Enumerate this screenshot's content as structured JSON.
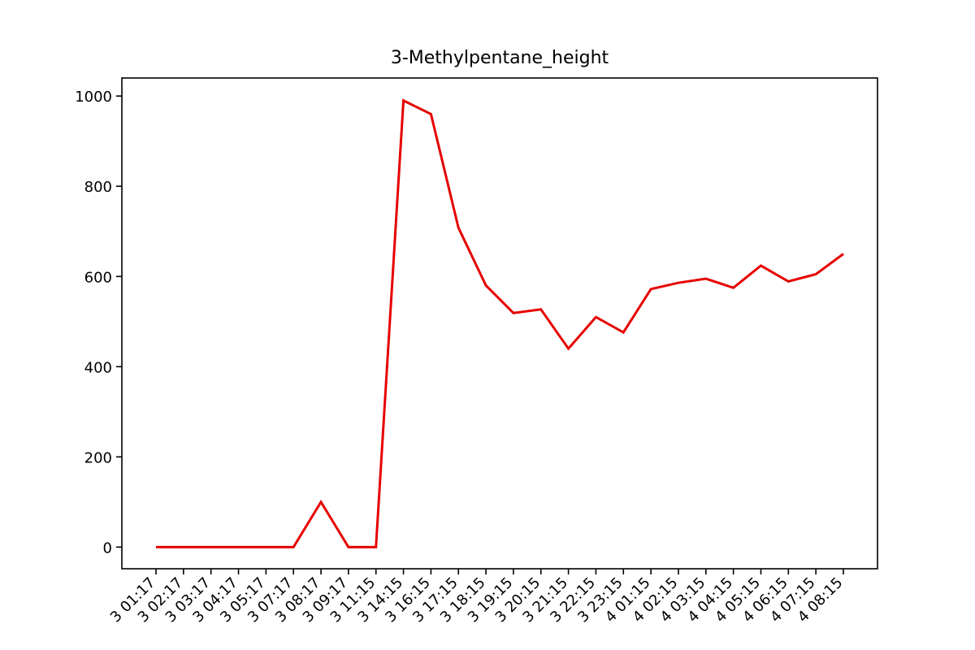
{
  "chart_data": {
    "type": "line",
    "title": "3-Methylpentane_height",
    "xlabel": "",
    "ylabel": "",
    "x": [
      "3 01:17",
      "3 02:17",
      "3 03:17",
      "3 04:17",
      "3 05:17",
      "3 07:17",
      "3 08:17",
      "3 09:17",
      "3 11:15",
      "3 14:15",
      "3 16:15",
      "3 17:15",
      "3 18:15",
      "3 19:15",
      "3 20:15",
      "3 21:15",
      "3 22:15",
      "3 23:15",
      "4 01:15",
      "4 02:15",
      "4 03:15",
      "4 04:15",
      "4 05:15",
      "4 06:15",
      "4 07:15",
      "4 08:15"
    ],
    "series": [
      {
        "color": "#e60000",
        "values": [
          0,
          0,
          0,
          0,
          0,
          0,
          100,
          0,
          0,
          990,
          960,
          708,
          580,
          519,
          527,
          440,
          510,
          476,
          572,
          586,
          595,
          575,
          624,
          589,
          605,
          650
        ]
      }
    ],
    "ylim": [
      -48,
      1040
    ],
    "yticks": [
      0,
      200,
      400,
      600,
      800,
      1000
    ],
    "grid": false,
    "legend": "none"
  }
}
